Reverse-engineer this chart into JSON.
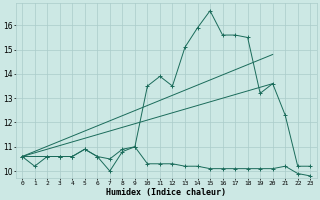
{
  "xlabel": "Humidex (Indice chaleur)",
  "bg_color": "#cce8e4",
  "grid_color": "#aaccca",
  "line_color": "#1a6b5a",
  "xlim": [
    -0.5,
    23.5
  ],
  "ylim": [
    9.7,
    16.9
  ],
  "xticks": [
    0,
    1,
    2,
    3,
    4,
    5,
    6,
    7,
    8,
    9,
    10,
    11,
    12,
    13,
    14,
    15,
    16,
    17,
    18,
    19,
    20,
    21,
    22,
    23
  ],
  "yticks": [
    10,
    11,
    12,
    13,
    14,
    15,
    16
  ],
  "series": [
    {
      "x": [
        0,
        1,
        2,
        3,
        4,
        5,
        6,
        7,
        8,
        9,
        10,
        11,
        12,
        13,
        14,
        15,
        16,
        17,
        18,
        19,
        20,
        21,
        22,
        23
      ],
      "y": [
        10.6,
        10.2,
        10.6,
        10.6,
        10.6,
        10.9,
        10.6,
        10.0,
        10.8,
        11.0,
        10.3,
        10.3,
        10.3,
        10.2,
        10.2,
        10.1,
        10.1,
        10.1,
        10.1,
        10.1,
        10.1,
        10.2,
        9.9,
        9.8
      ],
      "marker": true
    },
    {
      "x": [
        0,
        2,
        3,
        4,
        5,
        6,
        7,
        8,
        9,
        10,
        11,
        12,
        13,
        14,
        15,
        16,
        17,
        18,
        19,
        20,
        21,
        22,
        23
      ],
      "y": [
        10.6,
        10.6,
        10.6,
        10.6,
        10.9,
        10.6,
        10.5,
        10.9,
        11.0,
        13.5,
        13.9,
        13.5,
        15.1,
        15.9,
        16.6,
        15.6,
        15.6,
        15.5,
        13.2,
        13.6,
        12.3,
        10.2,
        10.2
      ],
      "marker": true
    },
    {
      "x": [
        0,
        20
      ],
      "y": [
        10.6,
        14.8
      ],
      "marker": false
    },
    {
      "x": [
        0,
        20
      ],
      "y": [
        10.6,
        13.6
      ],
      "marker": false
    }
  ]
}
